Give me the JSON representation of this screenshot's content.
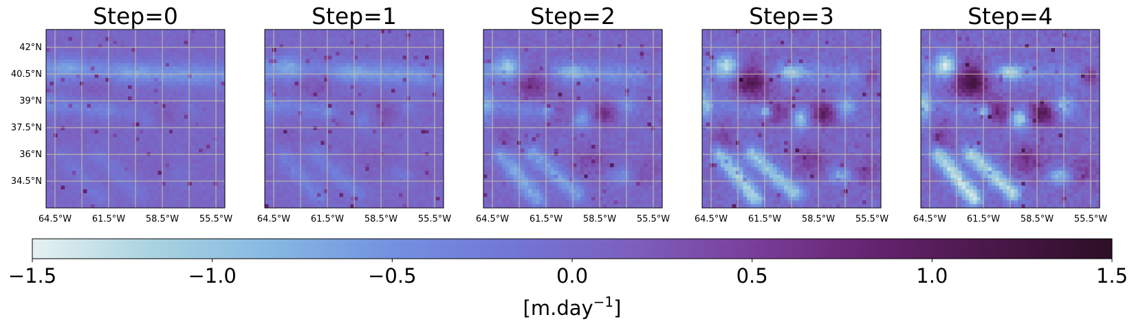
{
  "chart_data": {
    "type": "heatmap",
    "colormap": "dense",
    "panels": [
      {
        "title": "Step=0",
        "intensity": 0.15,
        "seed": 11
      },
      {
        "title": "Step=1",
        "intensity": 0.25,
        "seed": 23
      },
      {
        "title": "Step=2",
        "intensity": 0.55,
        "seed": 37
      },
      {
        "title": "Step=3",
        "intensity": 0.85,
        "seed": 41
      },
      {
        "title": "Step=4",
        "intensity": 1.0,
        "seed": 53
      }
    ],
    "x_ticks": [
      {
        "value": -64.5,
        "label": "64.5°W"
      },
      {
        "value": -61.5,
        "label": "61.5°W"
      },
      {
        "value": -58.5,
        "label": "58.5°W"
      },
      {
        "value": -55.5,
        "label": "55.5°W"
      }
    ],
    "y_ticks": [
      {
        "value": 42,
        "label": "42°N"
      },
      {
        "value": 40.5,
        "label": "40.5°N"
      },
      {
        "value": 39,
        "label": "39°N"
      },
      {
        "value": 37.5,
        "label": "37.5°N"
      },
      {
        "value": 36,
        "label": "36°N"
      },
      {
        "value": 34.5,
        "label": "34.5°N"
      }
    ],
    "xlim": [
      -65,
      -55
    ],
    "ylim": [
      33,
      43
    ],
    "grid": true,
    "colorbar": {
      "orientation": "horizontal",
      "vmin": -1.5,
      "vmax": 1.5,
      "ticks": [
        {
          "value": -1.5,
          "label": "−1.5"
        },
        {
          "value": -1.0,
          "label": "−1.0"
        },
        {
          "value": -0.5,
          "label": "−0.5"
        },
        {
          "value": 0.0,
          "label": "0.0"
        },
        {
          "value": 0.5,
          "label": "0.5"
        },
        {
          "value": 1.0,
          "label": "1.0"
        },
        {
          "value": 1.5,
          "label": "1.5"
        }
      ],
      "label_main": "[m.day",
      "label_sup": "−1",
      "label_end": "]",
      "colors": [
        "#e6f1f1",
        "#a9d3e0",
        "#86b8e2",
        "#7391e0",
        "#7276d6",
        "#7d5fbd",
        "#7a3e9a",
        "#65246f",
        "#4a1749",
        "#2d0f24"
      ]
    }
  }
}
